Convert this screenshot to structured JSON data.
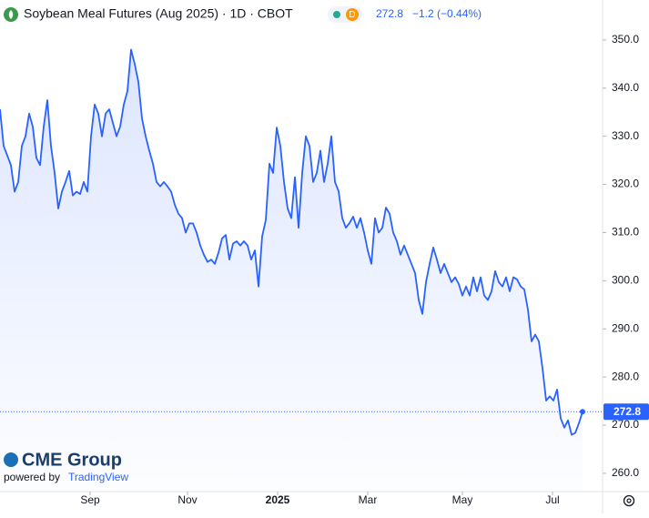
{
  "chart_data": {
    "type": "line",
    "title": "Soybean Meal Futures (Aug 2025) · 1D · CBOT",
    "interval_badge": "D",
    "change_label": "−1.2 (−0.44%)",
    "brand": "CME Group",
    "powered_by": "powered by",
    "powered_by_brand": "TradingView",
    "color": "#2962ff",
    "grid": false,
    "ylim": [
      256.2,
      358.3
    ],
    "yticks": [
      {
        "value": 260,
        "label": "260.0"
      },
      {
        "value": 270,
        "label": "270.0"
      },
      {
        "value": 280,
        "label": "280.0"
      },
      {
        "value": 290,
        "label": "290.0"
      },
      {
        "value": 300,
        "label": "300.0"
      },
      {
        "value": 310,
        "label": "310.0"
      },
      {
        "value": 320,
        "label": "320.0"
      },
      {
        "value": 330,
        "label": "330.0"
      },
      {
        "value": 340,
        "label": "340.0"
      },
      {
        "value": 350,
        "label": "350.0"
      }
    ],
    "xlim": [
      0,
      165
    ],
    "xticks": [
      {
        "value": 24.75,
        "label": "Sep"
      },
      {
        "value": 51.5,
        "label": "Nov"
      },
      {
        "value": 76.25,
        "label": "2025"
      },
      {
        "value": 101,
        "label": "Mar"
      },
      {
        "value": 127,
        "label": "May"
      },
      {
        "value": 151.75,
        "label": "Jul"
      }
    ],
    "values": [
      335.6,
      328,
      326,
      324,
      318.5,
      320.5,
      328,
      330,
      334.7,
      332,
      325.5,
      324,
      332,
      337.5,
      328,
      322.4,
      315,
      318.5,
      320.5,
      322.8,
      317.7,
      318.5,
      318,
      320.5,
      318.5,
      330,
      336.6,
      334.7,
      330,
      334.7,
      335.6,
      332.8,
      330,
      332,
      336.6,
      339.4,
      348,
      345,
      341.3,
      333.7,
      330,
      327,
      324.3,
      320.5,
      319.6,
      320.5,
      319.6,
      318.5,
      315.8,
      313.9,
      313,
      310,
      311.9,
      311.9,
      310,
      307.3,
      305.4,
      303.9,
      304.4,
      303.5,
      305.8,
      308.8,
      309.5,
      304.4,
      307.7,
      308.2,
      307.3,
      308.2,
      307.3,
      304.4,
      306.3,
      298.8,
      309.2,
      312.6,
      324.3,
      322.4,
      331.8,
      328,
      320.5,
      315,
      313,
      321.5,
      311,
      322.4,
      330,
      328,
      320.5,
      322.4,
      327,
      320.5,
      324.3,
      330,
      320.5,
      318.6,
      313,
      311,
      312,
      313.3,
      311,
      313,
      310,
      306.3,
      303.5,
      313,
      310,
      311,
      315.2,
      313.9,
      310,
      308.2,
      305.4,
      307.3,
      305.4,
      303.5,
      301.6,
      296,
      293.1,
      299.7,
      303.5,
      306.9,
      304.4,
      301.6,
      303.5,
      301.6,
      299.7,
      300.7,
      299.3,
      296.9,
      298.8,
      296.9,
      300.7,
      297.8,
      300.7,
      296.9,
      296,
      297.8,
      302,
      299.7,
      298.8,
      300.7,
      297.8,
      300.7,
      300.3,
      298.8,
      298.2,
      294,
      287.4,
      288.8,
      287.4,
      281.8,
      275.1,
      276,
      275.1,
      277.4,
      271.4,
      269.5,
      271,
      268,
      268.4,
      270.4,
      272.8
    ]
  }
}
